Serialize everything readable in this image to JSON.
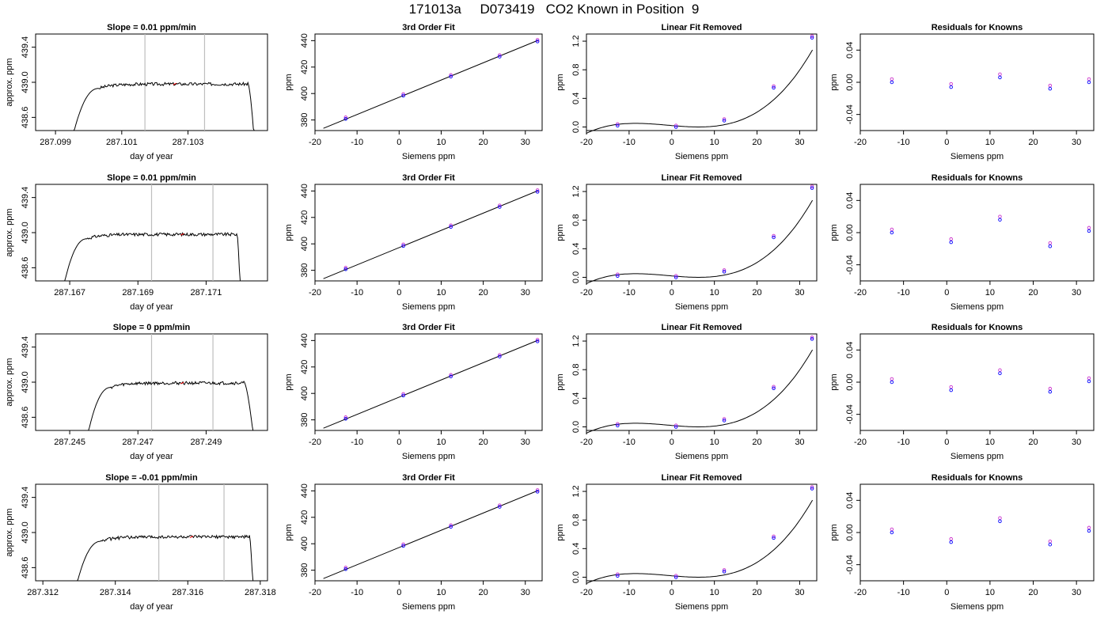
{
  "figure_title": "171013a     D073419   CO2 Known in Position  9",
  "colors": {
    "axis": "#000000",
    "marker_main": "#0000ff",
    "marker_alt": "#cc33cc",
    "red_mark": "#ff0000",
    "vline": "#bebebe"
  },
  "chart_data": [
    {
      "type": "line",
      "title": "Slope =  0.01  ppm/min",
      "xlabel": "day of year",
      "ylabel": "approx. ppm",
      "xticks": [
        "287.099",
        "287.101",
        "287.103"
      ],
      "yticks": [
        "438.6",
        "439.0",
        "439.4"
      ],
      "xlim": [
        287.0984,
        287.1054
      ],
      "ylim": [
        438.45,
        439.55
      ],
      "vlines": [
        287.1017,
        287.1035
      ],
      "trace": {
        "x_start": 287.0995,
        "x_rise": 287.1003,
        "x_fall": 287.1048,
        "x_end": 287.105,
        "level": 438.98
      }
    },
    {
      "type": "scatter",
      "title": "3rd Order Fit",
      "xlabel": "Siemens ppm",
      "ylabel": "ppm",
      "xticks": [
        "-20",
        "-10",
        "0",
        "10",
        "20",
        "30"
      ],
      "yticks": [
        "380",
        "400",
        "420",
        "440"
      ],
      "xlim": [
        -20,
        34
      ],
      "ylim": [
        372,
        445
      ],
      "points_x": [
        -12.7,
        1.0,
        12.3,
        23.9,
        32.9
      ],
      "points_y": [
        381.4,
        399.0,
        413.4,
        428.5,
        440.0
      ],
      "fit_x": [
        -18,
        33
      ],
      "fit_y": [
        373.7,
        440.2
      ]
    },
    {
      "type": "scatter",
      "title": "Linear Fit Removed",
      "xlabel": "Siemens ppm",
      "ylabel": "ppm",
      "xticks": [
        "-20",
        "-10",
        "0",
        "10",
        "20",
        "30"
      ],
      "yticks": [
        "0.0",
        "0.4",
        "0.8",
        "1.2"
      ],
      "xlim": [
        -20,
        34
      ],
      "ylim": [
        -0.05,
        1.3
      ],
      "points_x": [
        -12.7,
        1.0,
        12.3,
        23.9,
        32.9
      ],
      "points_y": [
        0.03,
        0.01,
        0.1,
        0.56,
        1.26
      ],
      "curve": {
        "a": 0.02,
        "b": -0.005,
        "c": 0.0001,
        "d": 3.1e-05
      }
    },
    {
      "type": "scatter",
      "title": "Residuals for Knowns",
      "xlabel": "Siemens ppm",
      "ylabel": "ppm",
      "xticks": [
        "-20",
        "-10",
        "0",
        "10",
        "20",
        "30"
      ],
      "yticks": [
        "-0.04",
        "0.00",
        "0.04"
      ],
      "xlim": [
        -20,
        34
      ],
      "ylim": [
        -0.06,
        0.06
      ],
      "points_x": [
        -12.7,
        1.0,
        12.3,
        23.9,
        32.9
      ],
      "points_y": [
        0.002,
        -0.004,
        0.008,
        -0.006,
        0.002
      ]
    },
    {
      "type": "line",
      "title": "Slope =  0.01  ppm/min",
      "xlabel": "day of year",
      "ylabel": "approx. ppm",
      "xticks": [
        "287.167",
        "287.169",
        "287.171"
      ],
      "yticks": [
        "438.6",
        "439.0",
        "439.4"
      ],
      "xlim": [
        287.166,
        287.1728
      ],
      "ylim": [
        438.45,
        439.55
      ],
      "vlines": [
        287.1694,
        287.1712
      ],
      "trace": {
        "x_start": 287.1668,
        "x_rise": 287.1675,
        "x_fall": 287.1719,
        "x_end": 287.172,
        "level": 438.98
      }
    },
    {
      "type": "scatter",
      "title": "3rd Order Fit",
      "xlabel": "Siemens ppm",
      "ylabel": "ppm",
      "xticks": [
        "-20",
        "-10",
        "0",
        "10",
        "20",
        "30"
      ],
      "yticks": [
        "380",
        "400",
        "420",
        "440"
      ],
      "xlim": [
        -20,
        34
      ],
      "ylim": [
        372,
        445
      ],
      "points_x": [
        -12.7,
        1.0,
        12.3,
        23.9,
        32.9
      ],
      "points_y": [
        381.4,
        399.0,
        413.4,
        428.5,
        440.0
      ],
      "fit_x": [
        -18,
        33
      ],
      "fit_y": [
        373.7,
        440.2
      ]
    },
    {
      "type": "scatter",
      "title": "Linear Fit Removed",
      "xlabel": "Siemens ppm",
      "ylabel": "ppm",
      "xticks": [
        "-20",
        "-10",
        "0",
        "10",
        "20",
        "30"
      ],
      "yticks": [
        "0.0",
        "0.4",
        "0.8",
        "1.2"
      ],
      "xlim": [
        -20,
        34
      ],
      "ylim": [
        -0.05,
        1.3
      ],
      "points_x": [
        -12.7,
        1.0,
        12.3,
        23.9,
        32.9
      ],
      "points_y": [
        0.03,
        0.01,
        0.09,
        0.57,
        1.26
      ],
      "curve": {
        "a": 0.02,
        "b": -0.005,
        "c": 0.0001,
        "d": 3.1e-05
      }
    },
    {
      "type": "scatter",
      "title": "Residuals for Knowns",
      "xlabel": "Siemens ppm",
      "ylabel": "ppm",
      "xticks": [
        "-20",
        "-10",
        "0",
        "10",
        "20",
        "30"
      ],
      "yticks": [
        "-0.04",
        "0.00",
        "0.04"
      ],
      "xlim": [
        -20,
        34
      ],
      "ylim": [
        -0.06,
        0.06
      ],
      "points_x": [
        -12.7,
        1.0,
        12.3,
        23.9,
        32.9
      ],
      "points_y": [
        0.002,
        -0.01,
        0.018,
        -0.015,
        0.004
      ]
    },
    {
      "type": "line",
      "title": "Slope =  0  ppm/min",
      "xlabel": "day of year",
      "ylabel": "approx. ppm",
      "xticks": [
        "287.245",
        "287.247",
        "287.249"
      ],
      "yticks": [
        "438.6",
        "439.0",
        "439.4"
      ],
      "xlim": [
        287.244,
        287.2508
      ],
      "ylim": [
        438.45,
        439.55
      ],
      "vlines": [
        287.2474,
        287.2492
      ],
      "trace": {
        "x_start": 287.2455,
        "x_rise": 287.2462,
        "x_fall": 287.2501,
        "x_end": 287.2504,
        "level": 438.99
      }
    },
    {
      "type": "scatter",
      "title": "3rd Order Fit",
      "xlabel": "Siemens ppm",
      "ylabel": "ppm",
      "xticks": [
        "-20",
        "-10",
        "0",
        "10",
        "20",
        "30"
      ],
      "yticks": [
        "380",
        "400",
        "420",
        "440"
      ],
      "xlim": [
        -20,
        34
      ],
      "ylim": [
        372,
        445
      ],
      "points_x": [
        -12.7,
        1.0,
        12.3,
        23.9,
        32.9
      ],
      "points_y": [
        381.4,
        399.0,
        413.4,
        428.5,
        440.0
      ],
      "fit_x": [
        -18,
        33
      ],
      "fit_y": [
        373.7,
        440.2
      ]
    },
    {
      "type": "scatter",
      "title": "Linear Fit Removed",
      "xlabel": "Siemens ppm",
      "ylabel": "ppm",
      "xticks": [
        "-20",
        "-10",
        "0",
        "10",
        "20",
        "30"
      ],
      "yticks": [
        "0.0",
        "0.4",
        "0.8",
        "1.2"
      ],
      "xlim": [
        -20,
        34
      ],
      "ylim": [
        -0.05,
        1.3
      ],
      "points_x": [
        -12.7,
        1.0,
        12.3,
        23.9,
        32.9
      ],
      "points_y": [
        0.03,
        0.01,
        0.1,
        0.55,
        1.24
      ],
      "curve": {
        "a": 0.02,
        "b": -0.005,
        "c": 0.0001,
        "d": 3.1e-05
      }
    },
    {
      "type": "scatter",
      "title": "Residuals for Knowns",
      "xlabel": "Siemens ppm",
      "ylabel": "ppm",
      "xticks": [
        "-20",
        "-10",
        "0",
        "10",
        "20",
        "30"
      ],
      "yticks": [
        "-0.04",
        "0.00",
        "0.04"
      ],
      "xlim": [
        -20,
        34
      ],
      "ylim": [
        -0.06,
        0.06
      ],
      "points_x": [
        -12.7,
        1.0,
        12.3,
        23.9,
        32.9
      ],
      "points_y": [
        0.002,
        -0.008,
        0.013,
        -0.01,
        0.003
      ]
    },
    {
      "type": "line",
      "title": "Slope =  -0.01  ppm/min",
      "xlabel": "day of year",
      "ylabel": "approx. ppm",
      "xticks": [
        "287.312",
        "287.314",
        "287.316",
        "287.318"
      ],
      "yticks": [
        "438.6",
        "439.0",
        "439.4"
      ],
      "xlim": [
        287.3118,
        287.3182
      ],
      "ylim": [
        438.45,
        439.55
      ],
      "vlines": [
        287.3152,
        287.317
      ],
      "trace": {
        "x_start": 287.3129,
        "x_rise": 287.3136,
        "x_fall": 287.3177,
        "x_end": 287.3178,
        "level": 438.95
      }
    },
    {
      "type": "scatter",
      "title": "3rd Order Fit",
      "xlabel": "Siemens ppm",
      "ylabel": "ppm",
      "xticks": [
        "-20",
        "-10",
        "0",
        "10",
        "20",
        "30"
      ],
      "yticks": [
        "380",
        "400",
        "420",
        "440"
      ],
      "xlim": [
        -20,
        34
      ],
      "ylim": [
        372,
        445
      ],
      "points_x": [
        -12.7,
        1.0,
        12.3,
        23.9,
        32.9
      ],
      "points_y": [
        381.4,
        399.0,
        413.4,
        428.5,
        440.0
      ],
      "fit_x": [
        -18,
        33
      ],
      "fit_y": [
        373.7,
        440.2
      ]
    },
    {
      "type": "scatter",
      "title": "Linear Fit Removed",
      "xlabel": "Siemens ppm",
      "ylabel": "ppm",
      "xticks": [
        "-20",
        "-10",
        "0",
        "10",
        "20",
        "30"
      ],
      "yticks": [
        "0.0",
        "0.4",
        "0.8",
        "1.2"
      ],
      "xlim": [
        -20,
        34
      ],
      "ylim": [
        -0.05,
        1.3
      ],
      "points_x": [
        -12.7,
        1.0,
        12.3,
        23.9,
        32.9
      ],
      "points_y": [
        0.03,
        0.01,
        0.09,
        0.56,
        1.25
      ],
      "curve": {
        "a": 0.02,
        "b": -0.005,
        "c": 0.0001,
        "d": 3.1e-05
      }
    },
    {
      "type": "scatter",
      "title": "Residuals for Knowns",
      "xlabel": "Siemens ppm",
      "ylabel": "ppm",
      "xticks": [
        "-20",
        "-10",
        "0",
        "10",
        "20",
        "30"
      ],
      "yticks": [
        "-0.04",
        "0.00",
        "0.04"
      ],
      "xlim": [
        -20,
        34
      ],
      "ylim": [
        -0.06,
        0.06
      ],
      "points_x": [
        -12.7,
        1.0,
        12.3,
        23.9,
        32.9
      ],
      "points_y": [
        0.002,
        -0.01,
        0.016,
        -0.013,
        0.004
      ]
    }
  ]
}
